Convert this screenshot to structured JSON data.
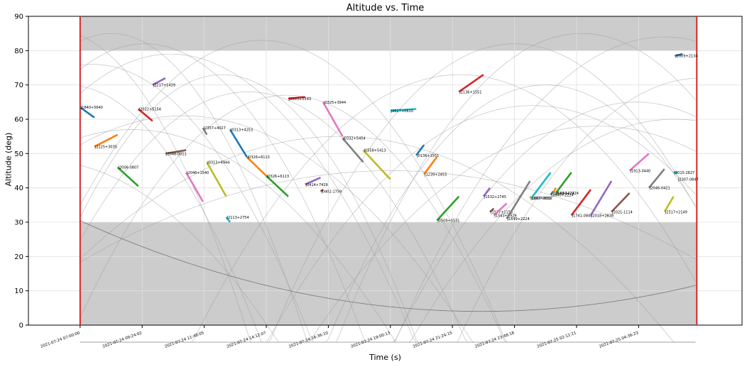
{
  "chart_data": {
    "type": "line",
    "title": "Altitude vs. Time",
    "xlabel": "Time (s)",
    "ylabel": "Altitude (deg)",
    "ylim": [
      0,
      90
    ],
    "yticks": [
      0,
      10,
      20,
      30,
      40,
      50,
      60,
      70,
      80,
      90
    ],
    "x_tick_labels": [
      "2021-07-24 07:00:00",
      "2021-07-24 09:24:02",
      "2021-07-24 11:48:05",
      "2021-07-24 14:12:07",
      "2021-07-24 16:36:10",
      "2021-07-24 19:00:13",
      "2021-07-24 21:24:15",
      "2021-07-24 23:48:18",
      "2021-07-25 02:12:21",
      "2021-07-25 04:36:23"
    ],
    "grid": true,
    "shaded_bands": [
      {
        "y_from": 80,
        "y_to": 90
      },
      {
        "y_from": 0,
        "y_to": 30
      }
    ],
    "window_lines_color": "#d62728",
    "curve_color": "#9a9a9a",
    "segments": [
      {
        "name": "J1840+5640",
        "color": "#1f77b4",
        "x0": 0.0,
        "y0": 63.5,
        "x1": 0.55,
        "y1": 60.5
      },
      {
        "name": "J2225+3035",
        "color": "#ff7f0e",
        "x0": 0.55,
        "y0": 52.0,
        "x1": 1.45,
        "y1": 55.5
      },
      {
        "name": "J2006-0807",
        "color": "#2ca02c",
        "x0": 1.45,
        "y0": 46.0,
        "x1": 2.25,
        "y1": 40.5
      },
      {
        "name": "J2022+5154",
        "color": "#d62728",
        "x0": 2.25,
        "y0": 63.0,
        "x1": 2.8,
        "y1": 59.5
      },
      {
        "name": "J2217+1439",
        "color": "#9467bd",
        "x0": 2.8,
        "y0": 70.0,
        "x1": 3.3,
        "y1": 72.0
      },
      {
        "name": "J2048-0011",
        "color": "#8c564b",
        "x0": 3.3,
        "y0": 50.0,
        "x1": 4.1,
        "y1": 51.0
      },
      {
        "name": "J2046+1540",
        "color": "#e377c2",
        "x0": 4.1,
        "y0": 44.5,
        "x1": 4.75,
        "y1": 36.0
      },
      {
        "name": "J2357+4027",
        "color": "#7f7f7f",
        "x0": 4.75,
        "y0": 57.5,
        "x1": 4.9,
        "y1": 55.5
      },
      {
        "name": "J0313+4944",
        "color": "#bcbd22",
        "x0": 4.9,
        "y0": 47.5,
        "x1": 5.65,
        "y1": 37.5
      },
      {
        "name": "J2113+2754",
        "color": "#17becf",
        "x0": 5.65,
        "y0": 31.5,
        "x1": 5.8,
        "y1": 30.0
      },
      {
        "name": "J0313+4253",
        "color": "#1f77b4",
        "x0": 5.8,
        "y0": 57.0,
        "x1": 6.45,
        "y1": 49.0
      },
      {
        "name": "J0326+6113",
        "color": "#ff7f0e",
        "x0": 6.45,
        "y0": 49.0,
        "x1": 7.2,
        "y1": 43.5
      },
      {
        "name": "J0326+6113",
        "color": "#2ca02c",
        "x0": 7.2,
        "y0": 43.5,
        "x1": 8.05,
        "y1": 37.5
      },
      {
        "name": "J0503+5543",
        "color": "#d62728",
        "x0": 8.05,
        "y0": 66.0,
        "x1": 8.7,
        "y1": 66.5
      },
      {
        "name": "J0414+7429",
        "color": "#9467bd",
        "x0": 8.7,
        "y0": 41.0,
        "x1": 9.3,
        "y1": 43.0
      },
      {
        "name": "J0402-1759",
        "color": "#8c564b",
        "x0": 9.3,
        "y0": 39.0,
        "x1": 9.4,
        "y1": 39.5
      },
      {
        "name": "J0325+3944",
        "color": "#e377c2",
        "x0": 9.4,
        "y0": 65.0,
        "x1": 10.15,
        "y1": 55.0
      },
      {
        "name": "J0332+5454",
        "color": "#7f7f7f",
        "x0": 10.15,
        "y0": 54.5,
        "x1": 10.95,
        "y1": 47.5
      },
      {
        "name": "J0558+5413",
        "color": "#bcbd22",
        "x0": 10.95,
        "y0": 51.0,
        "x1": 12.0,
        "y1": 42.5
      },
      {
        "name": "J0627+0610",
        "color": "#17becf",
        "x0": 12.0,
        "y0": 62.5,
        "x1": 13.0,
        "y1": 63.0
      },
      {
        "name": "J0136+1551",
        "color": "#1f77b4",
        "x0": 13.0,
        "y0": 49.5,
        "x1": 13.3,
        "y1": 52.5
      },
      {
        "name": "J1239+2453",
        "color": "#ff7f0e",
        "x0": 13.3,
        "y0": 44.0,
        "x1": 13.8,
        "y1": 49.0
      },
      {
        "name": "J0509+5531",
        "color": "#2ca02c",
        "x0": 13.8,
        "y0": 30.5,
        "x1": 14.65,
        "y1": 37.5
      },
      {
        "name": "J2136+1551",
        "color": "#d62728",
        "x0": 14.65,
        "y0": 68.0,
        "x1": 15.6,
        "y1": 73.0
      },
      {
        "name": "J1532+2745",
        "color": "#9467bd",
        "x0": 15.6,
        "y0": 37.5,
        "x1": 15.85,
        "y1": 40.0
      },
      {
        "name": "J1537+1155",
        "color": "#8c564b",
        "x0": 15.85,
        "y0": 33.0,
        "x1": 16.0,
        "y1": 34.0
      },
      {
        "name": "J1543+0929",
        "color": "#e377c2",
        "x0": 16.0,
        "y0": 32.0,
        "x1": 16.5,
        "y1": 35.5
      },
      {
        "name": "J1649+2224",
        "color": "#7f7f7f",
        "x0": 16.5,
        "y0": 31.0,
        "x1": 17.4,
        "y1": 42.0
      },
      {
        "name": "J1607-0032",
        "color": "#bcbd22",
        "x0": 17.4,
        "y0": 37.0,
        "x1": 17.45,
        "y1": 37.5
      },
      {
        "name": "J1607-0032",
        "color": "#17becf",
        "x0": 17.45,
        "y0": 37.0,
        "x1": 18.2,
        "y1": 44.5
      },
      {
        "name": "J1640+2224",
        "color": "#1f77b4",
        "x0": 18.2,
        "y0": 38.0,
        "x1": 18.3,
        "y1": 39.0
      },
      {
        "name": "J1643-1224",
        "color": "#ff7f0e",
        "x0": 18.3,
        "y0": 38.5,
        "x1": 18.4,
        "y1": 40.0
      },
      {
        "name": "J1640+2224",
        "color": "#2ca02c",
        "x0": 18.4,
        "y0": 38.5,
        "x1": 19.0,
        "y1": 44.5
      },
      {
        "name": "J1741-0840",
        "color": "#d62728",
        "x0": 19.0,
        "y0": 32.0,
        "x1": 19.75,
        "y1": 39.5
      },
      {
        "name": "J2018+2839",
        "color": "#9467bd",
        "x0": 19.75,
        "y0": 32.0,
        "x1": 20.55,
        "y1": 42.0
      },
      {
        "name": "J2021-1114",
        "color": "#8c564b",
        "x0": 20.55,
        "y0": 33.0,
        "x1": 21.25,
        "y1": 38.5
      },
      {
        "name": "J1913-0440",
        "color": "#e377c2",
        "x0": 21.25,
        "y0": 45.0,
        "x1": 22.0,
        "y1": 50.0
      },
      {
        "name": "J2046-0421",
        "color": "#7f7f7f",
        "x0": 22.0,
        "y0": 40.0,
        "x1": 22.6,
        "y1": 45.5
      },
      {
        "name": "J2317+2149",
        "color": "#bcbd22",
        "x0": 22.6,
        "y0": 33.0,
        "x1": 22.95,
        "y1": 37.5
      },
      {
        "name": "J2015-2827",
        "color": "#17becf",
        "x0": 22.95,
        "y0": 44.5,
        "x1": 23.1,
        "y1": 44.5
      },
      {
        "name": "J2307-0847",
        "color": "#bcbd22",
        "x0": 23.1,
        "y0": 42.5,
        "x1": 23.1,
        "y1": 42.5
      },
      {
        "name": "J2009+2134",
        "color": "#1f77b4",
        "x0": 23.0,
        "y0": 78.5,
        "x1": 23.3,
        "y1": 79.0
      }
    ]
  }
}
